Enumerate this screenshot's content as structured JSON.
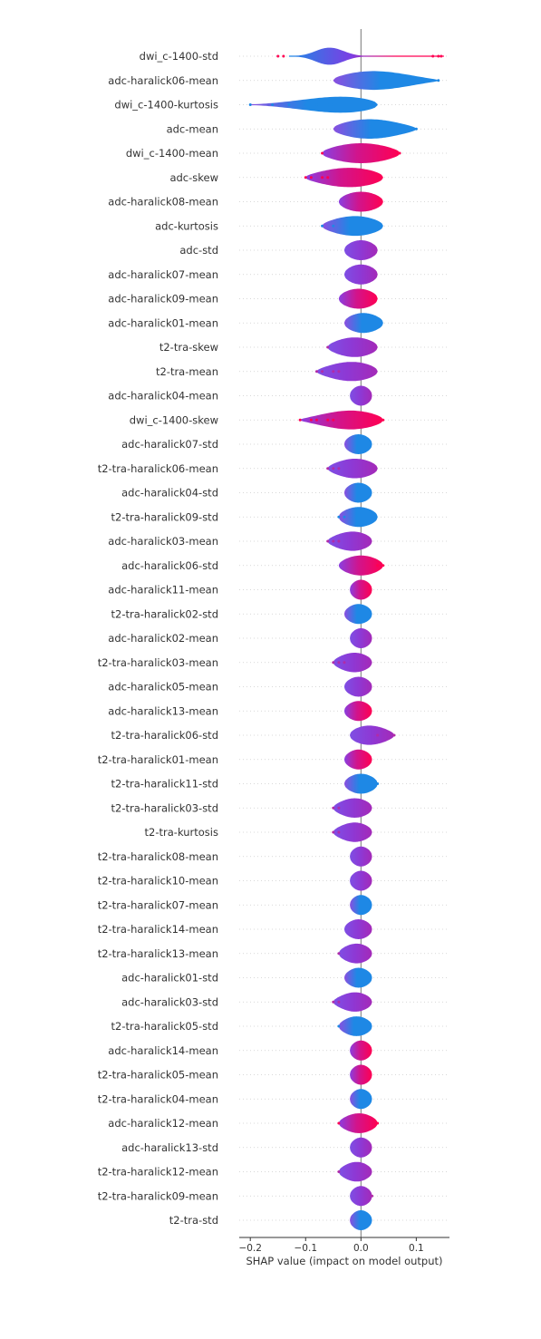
{
  "chart_data": {
    "type": "violin",
    "xlabel": "SHAP value (impact on model output)",
    "xlim": [
      -0.22,
      0.16
    ],
    "x_ticks": [
      {
        "value": -0.2,
        "label": "−0.2"
      },
      {
        "value": -0.1,
        "label": "−0.1"
      },
      {
        "value": 0.0,
        "label": "0.0"
      },
      {
        "value": 0.1,
        "label": "0.1"
      }
    ],
    "colors": {
      "low": "#1e88e5",
      "mid": "#7b3fe4",
      "high": "#ff0052",
      "grid": "#cccccc",
      "axis": "#333333"
    },
    "features": [
      {
        "name": "dwi_c-1400-std",
        "min": -0.13,
        "max": 0.15,
        "center": -0.06,
        "width": 0.11,
        "tone": "gradient",
        "outliers": [
          -0.15,
          -0.14,
          0.13,
          0.14,
          0.145
        ]
      },
      {
        "name": "adc-haralick06-mean",
        "min": -0.05,
        "max": 0.14,
        "center": 0.0,
        "width": 0.38,
        "tone": "blue",
        "outliers": [
          0.08,
          0.1,
          0.13,
          0.14
        ]
      },
      {
        "name": "dwi_c-1400-kurtosis",
        "min": -0.2,
        "max": 0.03,
        "center": 0.01,
        "width": 0.42,
        "tone": "blue",
        "outliers": [
          -0.2,
          -0.16,
          -0.13,
          -0.1,
          -0.08,
          -0.06,
          -0.05
        ]
      },
      {
        "name": "adc-mean",
        "min": -0.05,
        "max": 0.1,
        "center": 0.0,
        "width": 0.38,
        "tone": "blue",
        "outliers": [
          0.06,
          0.08,
          0.09,
          0.1
        ]
      },
      {
        "name": "dwi_c-1400-mean",
        "min": -0.07,
        "max": 0.07,
        "center": 0.0,
        "width": 0.42,
        "tone": "pink",
        "outliers": [
          -0.07,
          0.07
        ]
      },
      {
        "name": "adc-skew",
        "min": -0.1,
        "max": 0.04,
        "center": 0.0,
        "width": 0.42,
        "tone": "pink",
        "outliers": [
          -0.1,
          -0.09,
          -0.07,
          -0.06
        ]
      },
      {
        "name": "adc-haralick08-mean",
        "min": -0.04,
        "max": 0.04,
        "center": 0.0,
        "width": 0.36,
        "tone": "pink",
        "outliers": []
      },
      {
        "name": "adc-kurtosis",
        "min": -0.07,
        "max": 0.04,
        "center": 0.0,
        "width": 0.36,
        "tone": "blue",
        "outliers": [
          -0.07,
          -0.05
        ]
      },
      {
        "name": "adc-std",
        "min": -0.03,
        "max": 0.03,
        "center": 0.0,
        "width": 0.32,
        "tone": "purple",
        "outliers": []
      },
      {
        "name": "adc-haralick07-mean",
        "min": -0.03,
        "max": 0.03,
        "center": 0.0,
        "width": 0.32,
        "tone": "purple",
        "outliers": []
      },
      {
        "name": "adc-haralick09-mean",
        "min": -0.04,
        "max": 0.03,
        "center": 0.0,
        "width": 0.36,
        "tone": "pink",
        "outliers": []
      },
      {
        "name": "adc-haralick01-mean",
        "min": -0.03,
        "max": 0.04,
        "center": 0.0,
        "width": 0.32,
        "tone": "blue",
        "outliers": []
      },
      {
        "name": "t2-tra-skew",
        "min": -0.06,
        "max": 0.03,
        "center": 0.0,
        "width": 0.32,
        "tone": "purple",
        "outliers": [
          -0.06
        ]
      },
      {
        "name": "t2-tra-mean",
        "min": -0.08,
        "max": 0.03,
        "center": 0.0,
        "width": 0.32,
        "tone": "purple",
        "outliers": [
          -0.08,
          -0.07,
          -0.05,
          -0.04
        ]
      },
      {
        "name": "adc-haralick04-mean",
        "min": -0.02,
        "max": 0.02,
        "center": 0.0,
        "width": 0.28,
        "tone": "purple",
        "outliers": []
      },
      {
        "name": "dwi_c-1400-skew",
        "min": -0.11,
        "max": 0.04,
        "center": 0.0,
        "width": 0.32,
        "tone": "pink",
        "outliers": [
          -0.11,
          -0.09,
          -0.08,
          -0.06,
          -0.05,
          0.04
        ]
      },
      {
        "name": "adc-haralick07-std",
        "min": -0.03,
        "max": 0.02,
        "center": 0.0,
        "width": 0.3,
        "tone": "blue",
        "outliers": []
      },
      {
        "name": "t2-tra-haralick06-mean",
        "min": -0.06,
        "max": 0.03,
        "center": 0.0,
        "width": 0.28,
        "tone": "purple",
        "outliers": [
          -0.06,
          -0.05,
          -0.04
        ]
      },
      {
        "name": "adc-haralick04-std",
        "min": -0.03,
        "max": 0.02,
        "center": 0.0,
        "width": 0.32,
        "tone": "blue",
        "outliers": []
      },
      {
        "name": "t2-tra-haralick09-std",
        "min": -0.04,
        "max": 0.03,
        "center": 0.0,
        "width": 0.32,
        "tone": "blue",
        "outliers": [
          -0.04,
          -0.03
        ]
      },
      {
        "name": "adc-haralick03-mean",
        "min": -0.06,
        "max": 0.02,
        "center": 0.0,
        "width": 0.28,
        "tone": "purple",
        "outliers": [
          -0.06,
          -0.05,
          -0.04
        ]
      },
      {
        "name": "adc-haralick06-std",
        "min": -0.04,
        "max": 0.04,
        "center": 0.0,
        "width": 0.28,
        "tone": "pink",
        "outliers": [
          0.03,
          0.04
        ]
      },
      {
        "name": "adc-haralick11-mean",
        "min": -0.02,
        "max": 0.02,
        "center": 0.0,
        "width": 0.3,
        "tone": "pink",
        "outliers": []
      },
      {
        "name": "t2-tra-haralick02-std",
        "min": -0.03,
        "max": 0.02,
        "center": 0.0,
        "width": 0.28,
        "tone": "blue",
        "outliers": []
      },
      {
        "name": "adc-haralick02-mean",
        "min": -0.02,
        "max": 0.02,
        "center": 0.0,
        "width": 0.28,
        "tone": "purple",
        "outliers": []
      },
      {
        "name": "t2-tra-haralick03-mean",
        "min": -0.05,
        "max": 0.02,
        "center": 0.0,
        "width": 0.26,
        "tone": "purple",
        "outliers": [
          -0.05,
          -0.04,
          -0.03
        ]
      },
      {
        "name": "adc-haralick05-mean",
        "min": -0.03,
        "max": 0.02,
        "center": 0.0,
        "width": 0.28,
        "tone": "purple",
        "outliers": []
      },
      {
        "name": "adc-haralick13-mean",
        "min": -0.03,
        "max": 0.02,
        "center": 0.0,
        "width": 0.28,
        "tone": "pink",
        "outliers": []
      },
      {
        "name": "t2-tra-haralick06-std",
        "min": -0.02,
        "max": 0.06,
        "center": 0.0,
        "width": 0.28,
        "tone": "purple",
        "outliers": [
          0.03,
          0.06
        ]
      },
      {
        "name": "t2-tra-haralick01-mean",
        "min": -0.03,
        "max": 0.02,
        "center": 0.0,
        "width": 0.26,
        "tone": "pink",
        "outliers": []
      },
      {
        "name": "t2-tra-haralick11-std",
        "min": -0.03,
        "max": 0.03,
        "center": 0.0,
        "width": 0.26,
        "tone": "blue",
        "outliers": [
          0.03
        ]
      },
      {
        "name": "t2-tra-haralick03-std",
        "min": -0.05,
        "max": 0.02,
        "center": 0.0,
        "width": 0.24,
        "tone": "purple",
        "outliers": [
          -0.05,
          -0.04
        ]
      },
      {
        "name": "t2-tra-kurtosis",
        "min": -0.05,
        "max": 0.02,
        "center": 0.0,
        "width": 0.24,
        "tone": "purple",
        "outliers": [
          -0.05,
          -0.04
        ]
      },
      {
        "name": "t2-tra-haralick08-mean",
        "min": -0.02,
        "max": 0.02,
        "center": 0.0,
        "width": 0.26,
        "tone": "purple",
        "outliers": []
      },
      {
        "name": "t2-tra-haralick10-mean",
        "min": -0.02,
        "max": 0.02,
        "center": 0.0,
        "width": 0.26,
        "tone": "purple",
        "outliers": []
      },
      {
        "name": "t2-tra-haralick07-mean",
        "min": -0.02,
        "max": 0.02,
        "center": 0.0,
        "width": 0.26,
        "tone": "blue",
        "outliers": []
      },
      {
        "name": "t2-tra-haralick14-mean",
        "min": -0.03,
        "max": 0.02,
        "center": 0.0,
        "width": 0.26,
        "tone": "purple",
        "outliers": []
      },
      {
        "name": "t2-tra-haralick13-mean",
        "min": -0.04,
        "max": 0.02,
        "center": 0.0,
        "width": 0.24,
        "tone": "purple",
        "outliers": [
          -0.04
        ]
      },
      {
        "name": "adc-haralick01-std",
        "min": -0.03,
        "max": 0.02,
        "center": 0.0,
        "width": 0.24,
        "tone": "blue",
        "outliers": []
      },
      {
        "name": "adc-haralick03-std",
        "min": -0.05,
        "max": 0.02,
        "center": 0.0,
        "width": 0.22,
        "tone": "purple",
        "outliers": [
          -0.05,
          -0.04
        ]
      },
      {
        "name": "t2-tra-haralick05-std",
        "min": -0.04,
        "max": 0.02,
        "center": 0.0,
        "width": 0.24,
        "tone": "blue",
        "outliers": [
          -0.04
        ]
      },
      {
        "name": "adc-haralick14-mean",
        "min": -0.02,
        "max": 0.02,
        "center": 0.0,
        "width": 0.24,
        "tone": "pink",
        "outliers": []
      },
      {
        "name": "t2-tra-haralick05-mean",
        "min": -0.02,
        "max": 0.02,
        "center": 0.0,
        "width": 0.24,
        "tone": "pink",
        "outliers": []
      },
      {
        "name": "t2-tra-haralick04-mean",
        "min": -0.02,
        "max": 0.02,
        "center": 0.0,
        "width": 0.24,
        "tone": "blue",
        "outliers": []
      },
      {
        "name": "adc-haralick12-mean",
        "min": -0.04,
        "max": 0.03,
        "center": 0.0,
        "width": 0.22,
        "tone": "pink",
        "outliers": [
          -0.04,
          0.03
        ]
      },
      {
        "name": "adc-haralick13-std",
        "min": -0.02,
        "max": 0.02,
        "center": 0.0,
        "width": 0.22,
        "tone": "purple",
        "outliers": []
      },
      {
        "name": "t2-tra-haralick12-mean",
        "min": -0.04,
        "max": 0.02,
        "center": 0.0,
        "width": 0.22,
        "tone": "purple",
        "outliers": [
          -0.04
        ]
      },
      {
        "name": "t2-tra-haralick09-mean",
        "min": -0.02,
        "max": 0.02,
        "center": 0.0,
        "width": 0.22,
        "tone": "purple",
        "outliers": [
          0.02
        ]
      },
      {
        "name": "t2-tra-std",
        "min": -0.02,
        "max": 0.02,
        "center": 0.0,
        "width": 0.22,
        "tone": "blue",
        "outliers": []
      }
    ]
  }
}
